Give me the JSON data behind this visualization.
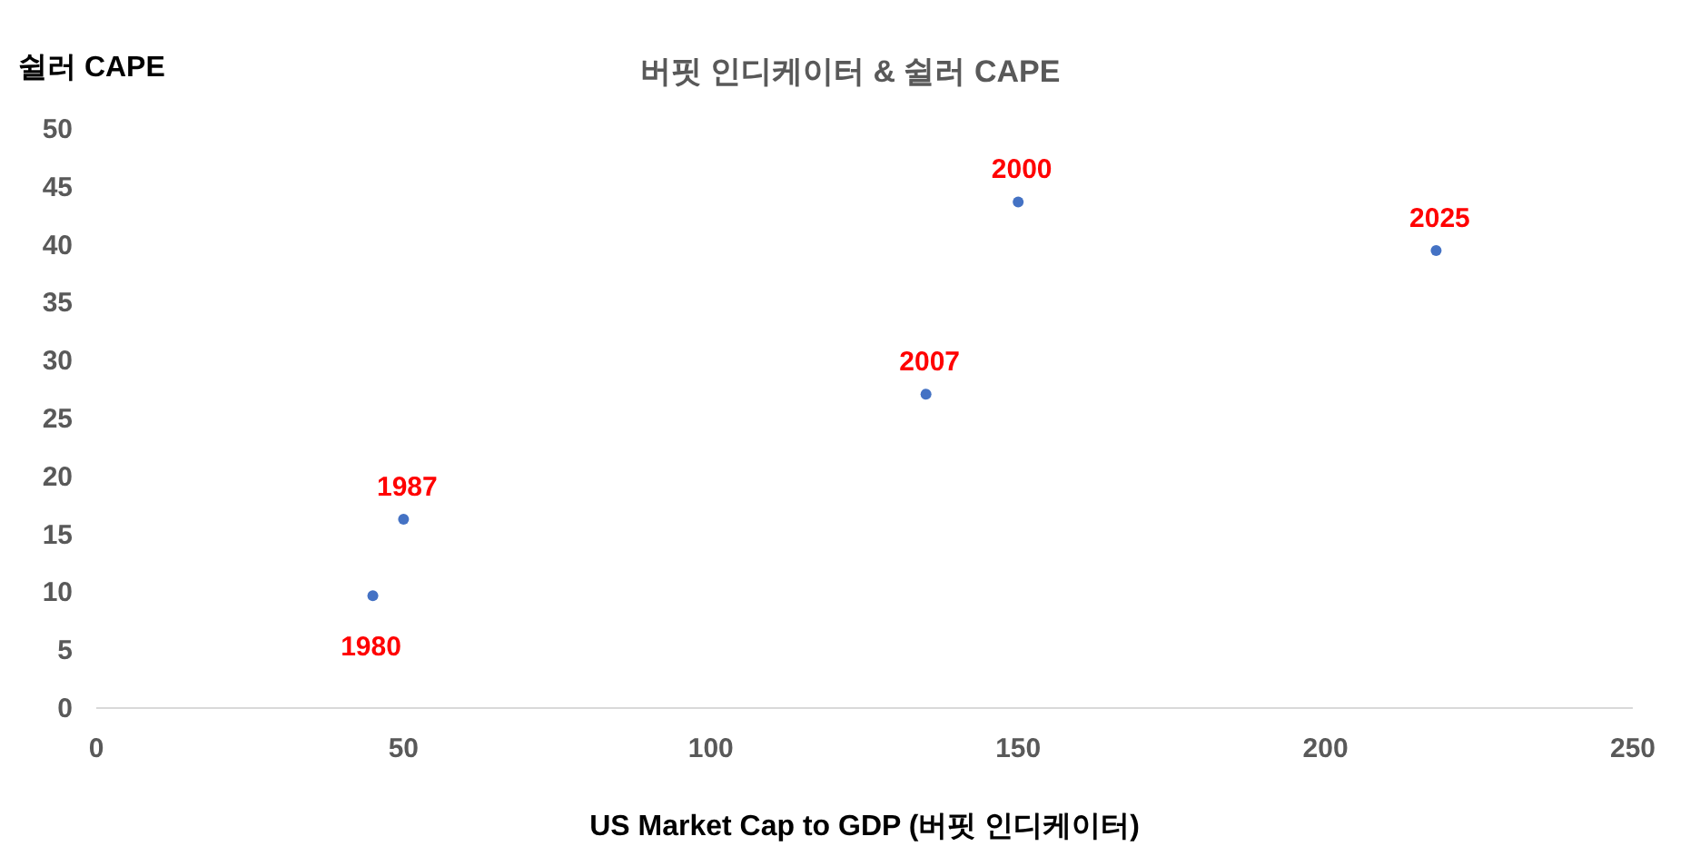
{
  "chart_data": {
    "type": "scatter",
    "title": "버핏 인디케이터 & 쉴러 CAPE",
    "xlabel": "US Market Cap to GDP (버핏 인디케이터)",
    "ylabel": "쉴러 CAPE",
    "series": [
      {
        "color": "#4472c4",
        "x": [
          45,
          50,
          135,
          150,
          218
        ],
        "values": [
          9.7,
          16.3,
          27.1,
          43.7,
          39.5
        ]
      }
    ],
    "marker": "circle",
    "xlim": [
      0,
      250
    ],
    "xticks": [
      0,
      50,
      100,
      150,
      200,
      250
    ],
    "ylim": [
      0,
      50
    ],
    "yticks": [
      0,
      5,
      10,
      15,
      20,
      25,
      30,
      35,
      40,
      45,
      50
    ],
    "annotations": [
      {
        "text": "1980",
        "x": 45,
        "y": 9.7
      },
      {
        "text": "1987",
        "x": 50,
        "y": 16.3
      },
      {
        "text": "2007",
        "x": 135,
        "y": 27.1
      },
      {
        "text": "2000",
        "x": 150,
        "y": 43.7
      },
      {
        "text": "2025",
        "x": 218,
        "y": 39.5
      }
    ]
  }
}
